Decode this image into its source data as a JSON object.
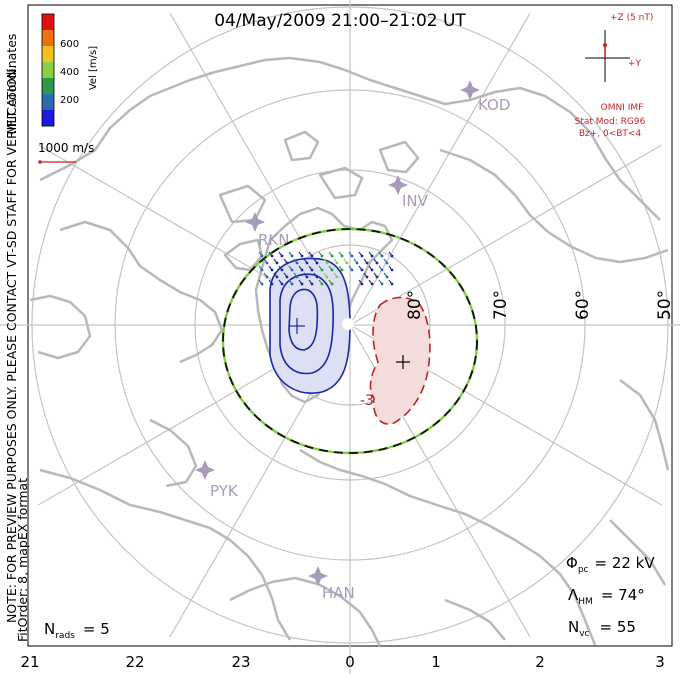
{
  "title": "04/May/2009 21:00–21:02 UT",
  "side_note": "NOTE: FOR PREVIEW PURPOSES ONLY. PLEASE CONTACT VT-SD STAFF FOR VERIFICATION.",
  "fit_info": "FitOrder: 8, mapEX format",
  "coord_label": "MLT coordinates",
  "colorbar": {
    "title": "Vel [m/s]",
    "ticks": [
      "600",
      "400",
      "200"
    ],
    "colors": [
      "#e01010",
      "#f07010",
      "#f0c020",
      "#8ad040",
      "#2a9a4a",
      "#2a6ab0",
      "#1a1ae0"
    ]
  },
  "ref_vector": {
    "label": "1000 m/s",
    "color": "#d02020"
  },
  "imf": {
    "z_label": "+Z (5 nT)",
    "y_label": "+Y",
    "source": "OMNI IMF",
    "model": "Stat Mod: RG96",
    "condition": "Bz+, 0<BT<4",
    "color": "#d02020"
  },
  "latitudes": [
    "80°",
    "70°",
    "60°",
    "50°"
  ],
  "stations": [
    "KOD",
    "INV",
    "RKN",
    "PYK",
    "HAN"
  ],
  "stats": {
    "phi_symbol": "Φ",
    "phi_sub": "pc",
    "phi_value": "= 22 kV",
    "lambda_symbol": "Λ",
    "lambda_sub": "HM",
    "lambda_value": "= 74°",
    "nvc_symbol": "N",
    "nvc_sub": "vc",
    "nvc_value": "= 55",
    "nrads_symbol": "N",
    "nrads_sub": "rads",
    "nrads_value": "= 5"
  },
  "contour_label": "-3",
  "mlt_ticks": [
    "21",
    "22",
    "23",
    "0",
    "1",
    "2",
    "3"
  ],
  "colors": {
    "grid": "#bdbdbd",
    "coast": "#b8b8b8",
    "station": "#a89ab8",
    "negative_cell": "#1a2aa0",
    "negative_fill": "#dde0f4",
    "positive_cell": "#c02020",
    "positive_fill": "#f4dcdc",
    "boundary": "#7fcf3f"
  }
}
